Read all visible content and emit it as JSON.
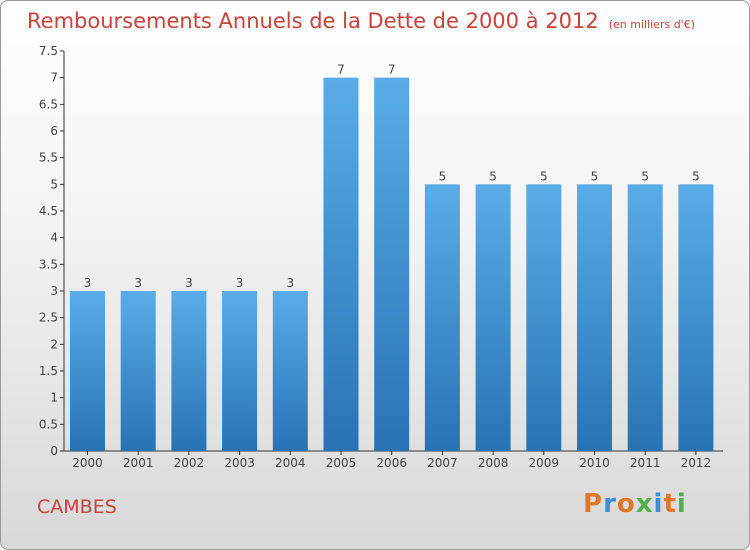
{
  "header": {
    "title": "Remboursements Annuels de la Dette de 2000 à 2012",
    "unit": "(en milliers d'€)"
  },
  "footer": {
    "town": "CAMBES",
    "logo": "Proxiti"
  },
  "colors": {
    "title": "#c8433a",
    "bar_top": "#5aace8",
    "bar_bottom": "#2873b4",
    "logo_letters": [
      "#e0782a",
      "#3a8fd6",
      "#e0782a",
      "#4fb04a",
      "#3a8fd6",
      "#e0782a",
      "#4fb04a"
    ]
  },
  "chart_data": {
    "type": "bar",
    "categories": [
      "2000",
      "2001",
      "2002",
      "2003",
      "2004",
      "2005",
      "2006",
      "2007",
      "2008",
      "2009",
      "2010",
      "2011",
      "2012"
    ],
    "values": [
      3,
      3,
      3,
      3,
      3,
      7,
      7,
      5,
      5,
      5,
      5,
      5,
      5
    ],
    "data_labels": [
      "3",
      "3",
      "3",
      "3",
      "3",
      "7",
      "7",
      "5",
      "5",
      "5",
      "5",
      "5",
      "5"
    ],
    "yticks": [
      "0",
      "0.5",
      "1",
      "1.5",
      "2",
      "2.5",
      "3",
      "3.5",
      "4",
      "4.5",
      "5",
      "5.5",
      "6",
      "6.5",
      "7",
      "7.5"
    ],
    "ylim": [
      0,
      7.5
    ],
    "grid": false,
    "title": "Remboursements Annuels de la Dette de 2000 à 2012",
    "ylabel": "",
    "xlabel": ""
  }
}
